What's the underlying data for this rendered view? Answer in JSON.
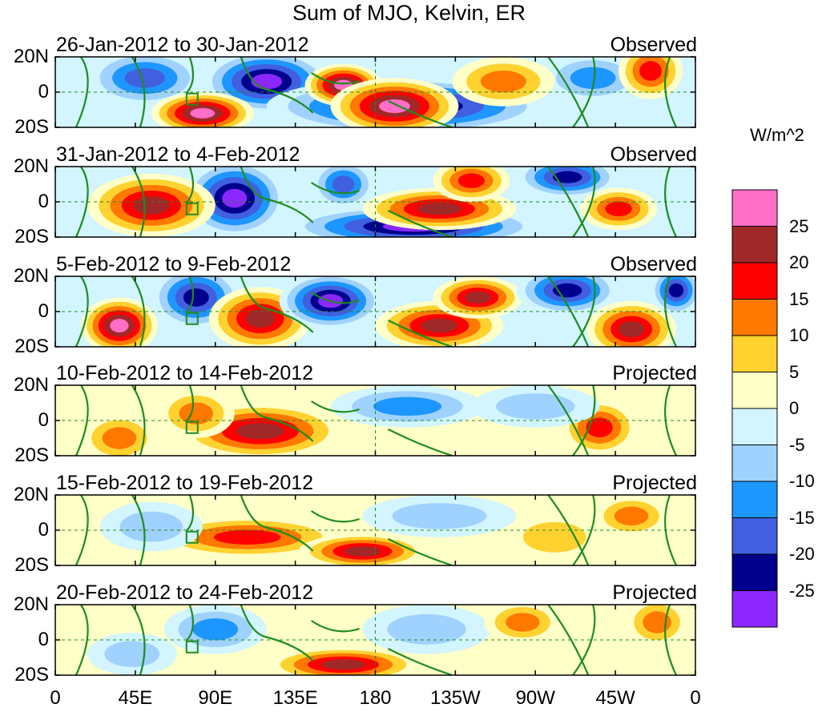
{
  "title": "Sum of MJO, Kelvin, ER",
  "units": "W/m^2",
  "panels": [
    {
      "dates": "26-Jan-2012 to 30-Jan-2012",
      "status": "Observed"
    },
    {
      "dates": "31-Jan-2012 to 4-Feb-2012",
      "status": "Observed"
    },
    {
      "dates": "5-Feb-2012 to 9-Feb-2012",
      "status": "Observed"
    },
    {
      "dates": "10-Feb-2012 to 14-Feb-2012",
      "status": "Projected"
    },
    {
      "dates": "15-Feb-2012 to 19-Feb-2012",
      "status": "Projected"
    },
    {
      "dates": "20-Feb-2012 to 24-Feb-2012",
      "status": "Projected"
    }
  ],
  "y_ticks": [
    "20N",
    "0",
    "20S"
  ],
  "x_ticks": [
    "0",
    "45E",
    "90E",
    "135E",
    "180",
    "135W",
    "90W",
    "45W",
    "0"
  ],
  "colorbar": {
    "labels": [
      "25",
      "20",
      "15",
      "10",
      "5",
      "0",
      "-5",
      "-10",
      "-15",
      "-20",
      "-25"
    ],
    "colors": [
      "#ff6ec7",
      "#a02828",
      "#ff0000",
      "#ff7800",
      "#ffd230",
      "#ffffc8",
      "#d2f5ff",
      "#a0d2ff",
      "#1e96ff",
      "#4060e0",
      "#00008c",
      "#8c28ff"
    ]
  }
}
